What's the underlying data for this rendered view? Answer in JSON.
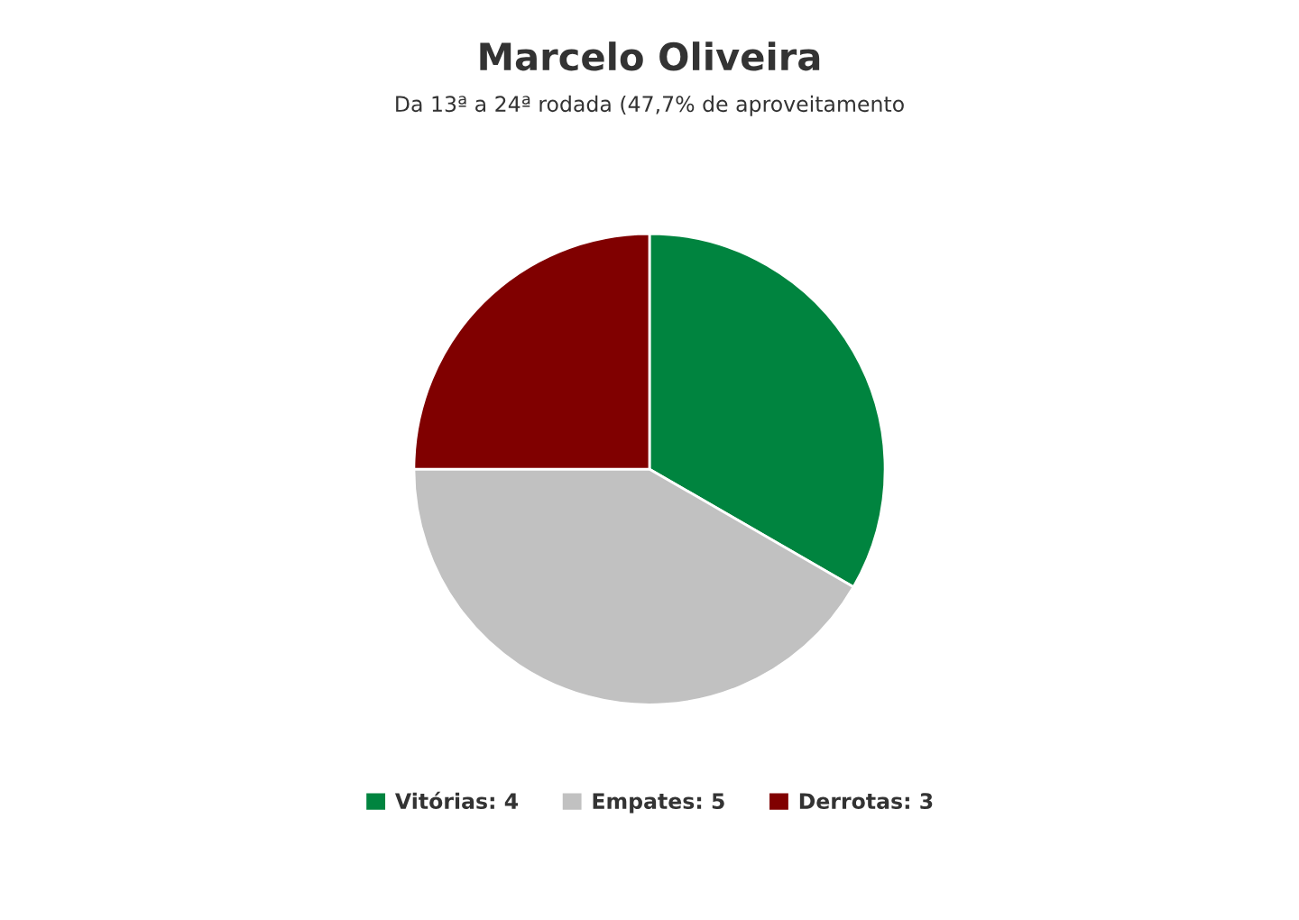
{
  "chart_data": {
    "type": "pie",
    "title": "Marcelo Oliveira",
    "subtitle": "Da 13ª a 24ª rodada (47,7% de aproveitamento",
    "categories": [
      "Vitórias: 4",
      "Empates: 5",
      "Derrotas: 3"
    ],
    "values": [
      4,
      5,
      3
    ],
    "colors": [
      "#00843f",
      "#c1c1c1",
      "#800000"
    ],
    "legend": "bottom"
  }
}
